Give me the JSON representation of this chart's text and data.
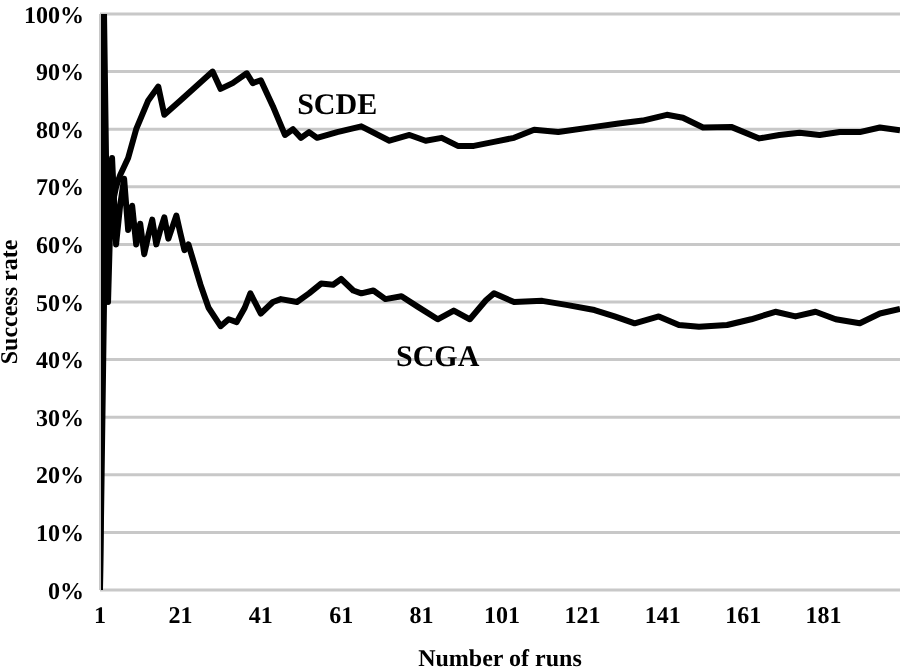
{
  "chart_data": {
    "type": "line",
    "xlabel": "Number of runs",
    "ylabel": "Success rate",
    "xlim": [
      1,
      200
    ],
    "xticks": [
      1,
      21,
      41,
      61,
      81,
      101,
      121,
      141,
      161,
      181
    ],
    "ylim": [
      0,
      100
    ],
    "yticks": [
      {
        "value": 0,
        "label": "0%"
      },
      {
        "value": 10,
        "label": "10%"
      },
      {
        "value": 20,
        "label": "20%"
      },
      {
        "value": 30,
        "label": "30%"
      },
      {
        "value": 40,
        "label": "40%"
      },
      {
        "value": 50,
        "label": "50%"
      },
      {
        "value": 60,
        "label": "60%"
      },
      {
        "value": 70,
        "label": "70%"
      },
      {
        "value": 80,
        "label": "80%"
      },
      {
        "value": 90,
        "label": "90%"
      },
      {
        "value": 100,
        "label": "100%"
      }
    ],
    "grid": "y",
    "marker": "none",
    "line_style": "solid",
    "series": [
      {
        "name": "SCDE",
        "color": "#000000",
        "x": [
          1,
          2,
          3,
          4,
          5,
          6,
          8,
          10,
          13,
          15.5,
          17,
          21,
          25,
          29,
          31,
          34,
          37.5,
          39,
          41,
          44,
          47,
          49,
          51,
          53,
          55,
          60,
          66,
          73,
          78,
          82,
          86,
          90,
          94,
          99,
          104,
          109,
          115,
          124,
          130,
          136,
          142,
          146,
          151,
          158,
          165,
          170,
          175,
          180,
          185,
          190,
          195,
          200
        ],
        "values": [
          0,
          50,
          66.7,
          66.7,
          70,
          72,
          75,
          80,
          85,
          87.4,
          82.5,
          85,
          87.5,
          90,
          87,
          88,
          89.7,
          88,
          88.5,
          84,
          79,
          80,
          78.5,
          79.5,
          78.5,
          79.5,
          80.5,
          78,
          79,
          78,
          78.5,
          77.1,
          77.1,
          77.8,
          78.5,
          79.9,
          79.5,
          80.4,
          81,
          81.5,
          82.5,
          82,
          80.3,
          80.4,
          78.4,
          79,
          79.4,
          79,
          79.5,
          79.5,
          80.3,
          79.8
        ]
      },
      {
        "name": "SCGA",
        "color": "#000000",
        "x": [
          1,
          2,
          3,
          4,
          5,
          6,
          7,
          8,
          9,
          10,
          11,
          12,
          13,
          14,
          15,
          16,
          17,
          18,
          19,
          20,
          21,
          22,
          23,
          26,
          28,
          31,
          33,
          35,
          37,
          38.4,
          41,
          44,
          46,
          50,
          53,
          56,
          59,
          61,
          64,
          66,
          69,
          72,
          76,
          80,
          85,
          89,
          93,
          97,
          99,
          104,
          111,
          117,
          124,
          129,
          134,
          140,
          145,
          150,
          157,
          163,
          169,
          174,
          179,
          184,
          190,
          195,
          200
        ],
        "values": [
          0,
          100,
          50,
          75,
          60,
          66.7,
          71.4,
          62.5,
          66.7,
          60,
          63.6,
          58.3,
          61.5,
          64.3,
          60,
          62.5,
          64.7,
          61,
          63,
          65,
          61.9,
          59,
          60,
          53,
          49,
          45.8,
          47,
          46.5,
          49,
          51.5,
          48,
          50,
          50.5,
          50,
          51.5,
          53.2,
          53,
          54,
          52,
          51.5,
          52,
          50.5,
          51,
          49.2,
          47,
          48.5,
          47,
          50.3,
          51.5,
          50,
          50.2,
          49.5,
          48.6,
          47.5,
          46.3,
          47.5,
          46,
          45.7,
          46,
          47,
          48.3,
          47.5,
          48.3,
          47,
          46.3,
          48,
          48.8
        ]
      }
    ]
  }
}
